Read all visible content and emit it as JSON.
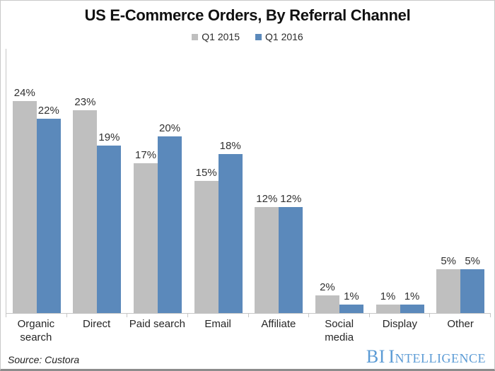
{
  "title": "US E-Commerce Orders, By Referral Channel",
  "legend": {
    "items": [
      {
        "label": "Q1 2015",
        "color": "#bfbfbf"
      },
      {
        "label": "Q1 2016",
        "color": "#5b89bb"
      }
    ]
  },
  "source": "Source: Custora",
  "branding": {
    "bi": "BI",
    "word": "Intelligence"
  },
  "chart_data": {
    "type": "bar",
    "title": "US E-Commerce Orders, By Referral Channel",
    "categories": [
      "Organic search",
      "Direct",
      "Paid search",
      "Email",
      "Affiliate",
      "Social media",
      "Display",
      "Other"
    ],
    "series": [
      {
        "name": "Q1 2015",
        "color": "#bfbfbf",
        "values": [
          24,
          23,
          17,
          15,
          12,
          2,
          1,
          5
        ]
      },
      {
        "name": "Q1 2016",
        "color": "#5b89bb",
        "values": [
          22,
          19,
          20,
          18,
          12,
          1,
          1,
          5
        ]
      }
    ],
    "value_suffix": "%",
    "xlabel": "",
    "ylabel": "",
    "ylim": [
      0,
      30
    ],
    "y_axis_labels_visible": false,
    "grid": false,
    "data_labels": true,
    "legend_position": "top",
    "source_text": "Source: Custora"
  }
}
